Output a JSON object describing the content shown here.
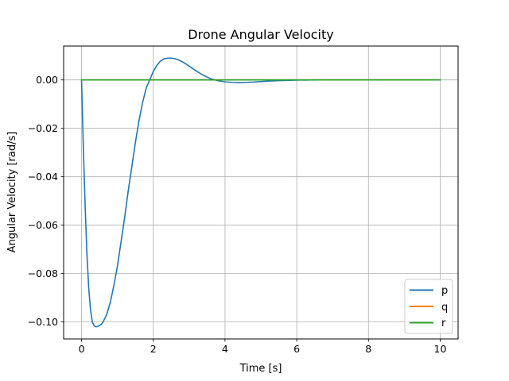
{
  "chart_data": {
    "type": "line",
    "title": "Drone Angular Velocity",
    "xlabel": "Time [s]",
    "ylabel": "Angular Velocity [rad/s]",
    "xlim": [
      -0.5,
      10.5
    ],
    "ylim": [
      -0.107,
      0.014
    ],
    "xticks": [
      0,
      2,
      4,
      6,
      8,
      10
    ],
    "yticks": [
      0.0,
      -0.02,
      -0.04,
      -0.06,
      -0.08,
      -0.1
    ],
    "xtick_labels": [
      "0",
      "2",
      "4",
      "6",
      "8",
      "10"
    ],
    "ytick_labels": [
      "0.00",
      "−0.02",
      "−0.04",
      "−0.06",
      "−0.08",
      "−0.10"
    ],
    "grid": true,
    "legend": {
      "placement": "lower-right",
      "entries": [
        "p",
        "q",
        "r"
      ]
    },
    "series": [
      {
        "name": "p",
        "color": "#1f77b4",
        "x": [
          0,
          0.05,
          0.1,
          0.15,
          0.2,
          0.25,
          0.3,
          0.35,
          0.4,
          0.45,
          0.5,
          0.55,
          0.6,
          0.65,
          0.7,
          0.8,
          0.9,
          1.0,
          1.1,
          1.2,
          1.3,
          1.4,
          1.5,
          1.6,
          1.7,
          1.8,
          1.9,
          2.0,
          2.1,
          2.2,
          2.3,
          2.4,
          2.5,
          2.6,
          2.7,
          2.8,
          2.9,
          3.0,
          3.2,
          3.4,
          3.6,
          3.8,
          4.0,
          4.2,
          4.4,
          4.6,
          4.8,
          5.0,
          5.2,
          5.5,
          6.0,
          6.5,
          7.0,
          8.0,
          9.0,
          10.0
        ],
        "y": [
          0.0,
          -0.028,
          -0.052,
          -0.072,
          -0.086,
          -0.095,
          -0.1,
          -0.1015,
          -0.102,
          -0.1018,
          -0.1015,
          -0.101,
          -0.1,
          -0.0985,
          -0.097,
          -0.092,
          -0.085,
          -0.077,
          -0.067,
          -0.057,
          -0.046,
          -0.036,
          -0.026,
          -0.017,
          -0.0095,
          -0.0035,
          0.0,
          0.0035,
          0.006,
          0.0078,
          0.0087,
          0.009,
          0.009,
          0.0088,
          0.0083,
          0.0076,
          0.0067,
          0.0057,
          0.0037,
          0.0019,
          0.0005,
          -0.0003,
          -0.0008,
          -0.001,
          -0.0011,
          -0.001,
          -0.0009,
          -0.0007,
          -0.0005,
          -0.0003,
          -0.0001,
          0.0,
          0.0,
          0.0,
          0.0,
          0.0
        ]
      },
      {
        "name": "q",
        "color": "#ff7f0e",
        "x": [
          0,
          10
        ],
        "y": [
          0.0,
          0.0
        ]
      },
      {
        "name": "r",
        "color": "#2ca02c",
        "x": [
          0,
          10
        ],
        "y": [
          0.0,
          0.0
        ]
      }
    ]
  }
}
